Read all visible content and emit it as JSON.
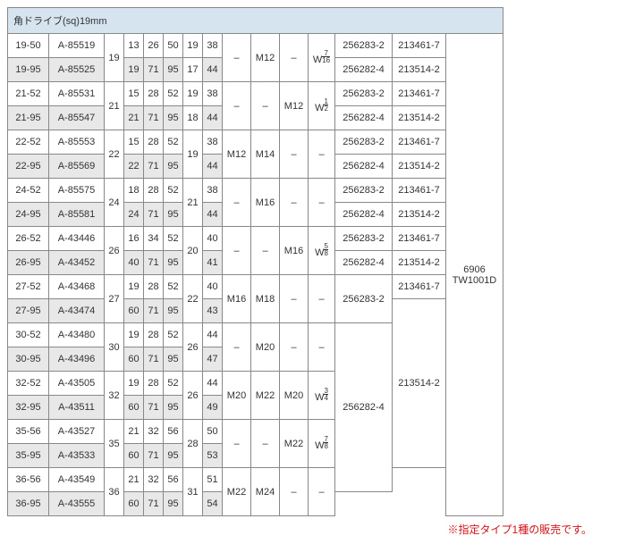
{
  "header": "角ドライブ(sq)19mm",
  "note": "※指定タイプ1種の販売です。",
  "colors": {
    "header_bg": "#d6e4f0",
    "gray_bg": "#e8e8e8",
    "note_color": "#d1131a"
  },
  "model_col": "6906\nTW1001D",
  "groups": [
    {
      "g1": "19",
      "rows": [
        {
          "code": "19-50",
          "part": "A-85519",
          "n1": "13",
          "n2": "26",
          "n3": "50",
          "g2": "19",
          "n4": "38",
          "m1": "–",
          "m2": "M12",
          "m3": "–",
          "w": "W 7/16",
          "p1": "256283-2",
          "p2": "213461-7",
          "gray": false
        },
        {
          "code": "19-95",
          "part": "A-85525",
          "n1": "19",
          "n2": "71",
          "n3": "95",
          "g2": "17",
          "n4": "44",
          "m1": "",
          "m2": "",
          "m3": "",
          "w": "",
          "p1": "256282-4",
          "p2": "213514-2",
          "gray": true
        }
      ]
    },
    {
      "g1": "21",
      "rows": [
        {
          "code": "21-52",
          "part": "A-85531",
          "n1": "15",
          "n2": "28",
          "n3": "52",
          "g2": "19",
          "n4": "38",
          "m1": "–",
          "m2": "–",
          "m3": "M12",
          "w": "W 1/2",
          "p1": "256283-2",
          "p2": "213461-7",
          "gray": false
        },
        {
          "code": "21-95",
          "part": "A-85547",
          "n1": "21",
          "n2": "71",
          "n3": "95",
          "g2": "18",
          "n4": "44",
          "m1": "",
          "m2": "",
          "m3": "",
          "w": "",
          "p1": "256282-4",
          "p2": "213514-2",
          "gray": true
        }
      ]
    },
    {
      "g1": "22",
      "rows": [
        {
          "code": "22-52",
          "part": "A-85553",
          "n1": "15",
          "n2": "28",
          "n3": "52",
          "g2": "19",
          "g2span": 2,
          "n4": "38",
          "m1": "M12",
          "m2": "M14",
          "m3": "–",
          "w": "–",
          "p1": "256283-2",
          "p2": "213461-7",
          "gray": false
        },
        {
          "code": "22-95",
          "part": "A-85569",
          "n1": "22",
          "n2": "71",
          "n3": "95",
          "n4": "44",
          "m1": "",
          "m2": "",
          "m3": "",
          "w": "",
          "p1": "256282-4",
          "p2": "213514-2",
          "gray": true
        }
      ]
    },
    {
      "g1": "24",
      "rows": [
        {
          "code": "24-52",
          "part": "A-85575",
          "n1": "18",
          "n2": "28",
          "n3": "52",
          "g2": "21",
          "g2span": 2,
          "n4": "38",
          "m1": "–",
          "m2": "M16",
          "m3": "–",
          "w": "–",
          "p1": "256283-2",
          "p2": "213461-7",
          "gray": false
        },
        {
          "code": "24-95",
          "part": "A-85581",
          "n1": "24",
          "n2": "71",
          "n3": "95",
          "n4": "44",
          "m1": "",
          "m2": "",
          "m3": "",
          "w": "",
          "p1": "256282-4",
          "p2": "213514-2",
          "gray": true
        }
      ]
    },
    {
      "g1": "26",
      "rows": [
        {
          "code": "26-52",
          "part": "A-43446",
          "n1": "16",
          "n2": "34",
          "n3": "52",
          "g2": "20",
          "g2span": 2,
          "n4": "40",
          "m1": "–",
          "m2": "–",
          "m3": "M16",
          "w": "W 5/8",
          "p1": "256283-2",
          "p2": "213461-7",
          "gray": false
        },
        {
          "code": "26-95",
          "part": "A-43452",
          "n1": "40",
          "n2": "71",
          "n3": "95",
          "n4": "41",
          "m1": "",
          "m2": "",
          "m3": "",
          "w": "",
          "p1": "256282-4",
          "p2": "213514-2",
          "gray": true
        }
      ]
    },
    {
      "g1": "27",
      "rows": [
        {
          "code": "27-52",
          "part": "A-43468",
          "n1": "19",
          "n2": "28",
          "n3": "52",
          "g2": "22",
          "g2span": 2,
          "n4": "40",
          "m1": "M16",
          "m2": "M18",
          "m3": "–",
          "w": "–",
          "p1": "256283-2",
          "p1span": 2,
          "p2": "213461-7",
          "gray": false
        },
        {
          "code": "27-95",
          "part": "A-43474",
          "n1": "60",
          "n2": "71",
          "n3": "95",
          "n4": "43",
          "m1": "",
          "m2": "",
          "m3": "",
          "w": "",
          "p2": "213514-2",
          "p2span": 7,
          "gray": true
        }
      ]
    },
    {
      "g1": "30",
      "rows": [
        {
          "code": "30-52",
          "part": "A-43480",
          "n1": "19",
          "n2": "28",
          "n3": "52",
          "g2": "26",
          "g2span": 2,
          "n4": "44",
          "m1": "–",
          "m2": "M20",
          "m3": "–",
          "w": "–",
          "p1": "256282-4",
          "p1span": 7,
          "p2": "",
          "gray": false
        },
        {
          "code": "30-95",
          "part": "A-43496",
          "n1": "60",
          "n2": "71",
          "n3": "95",
          "n4": "47",
          "m1": "",
          "m2": "",
          "m3": "",
          "w": "",
          "p2": "",
          "gray": true
        }
      ]
    },
    {
      "g1": "32",
      "rows": [
        {
          "code": "32-52",
          "part": "A-43505",
          "n1": "19",
          "n2": "28",
          "n3": "52",
          "g2": "26",
          "g2span": 2,
          "n4": "44",
          "m1": "M20",
          "m2": "M22",
          "m3": "M20",
          "w": "W 3/4",
          "gray": false
        },
        {
          "code": "32-95",
          "part": "A-43511",
          "n1": "60",
          "n2": "71",
          "n3": "95",
          "n4": "49",
          "m1": "",
          "m2": "",
          "m3": "",
          "w": "",
          "gray": true
        }
      ]
    },
    {
      "g1": "35",
      "rows": [
        {
          "code": "35-56",
          "part": "A-43527",
          "n1": "21",
          "n2": "32",
          "n3": "56",
          "g2": "28",
          "g2span": 2,
          "n4": "50",
          "m1": "–",
          "m2": "–",
          "m3": "M22",
          "w": "W 7/8",
          "gray": false
        },
        {
          "code": "35-95",
          "part": "A-43533",
          "n1": "60",
          "n2": "71",
          "n3": "95",
          "n4": "53",
          "m1": "",
          "m2": "",
          "m3": "",
          "w": "",
          "gray": true
        }
      ]
    },
    {
      "g1": "36",
      "rows": [
        {
          "code": "36-56",
          "part": "A-43549",
          "n1": "21",
          "n2": "32",
          "n3": "56",
          "g2": "31",
          "g2span": 2,
          "n4": "51",
          "m1": "M22",
          "m2": "M24",
          "m3": "–",
          "w": "–",
          "gray": false
        },
        {
          "code": "36-95",
          "part": "A-43555",
          "n1": "60",
          "n2": "71",
          "n3": "95",
          "n4": "54",
          "m1": "",
          "m2": "",
          "m3": "",
          "w": "",
          "gray": true
        }
      ]
    }
  ]
}
